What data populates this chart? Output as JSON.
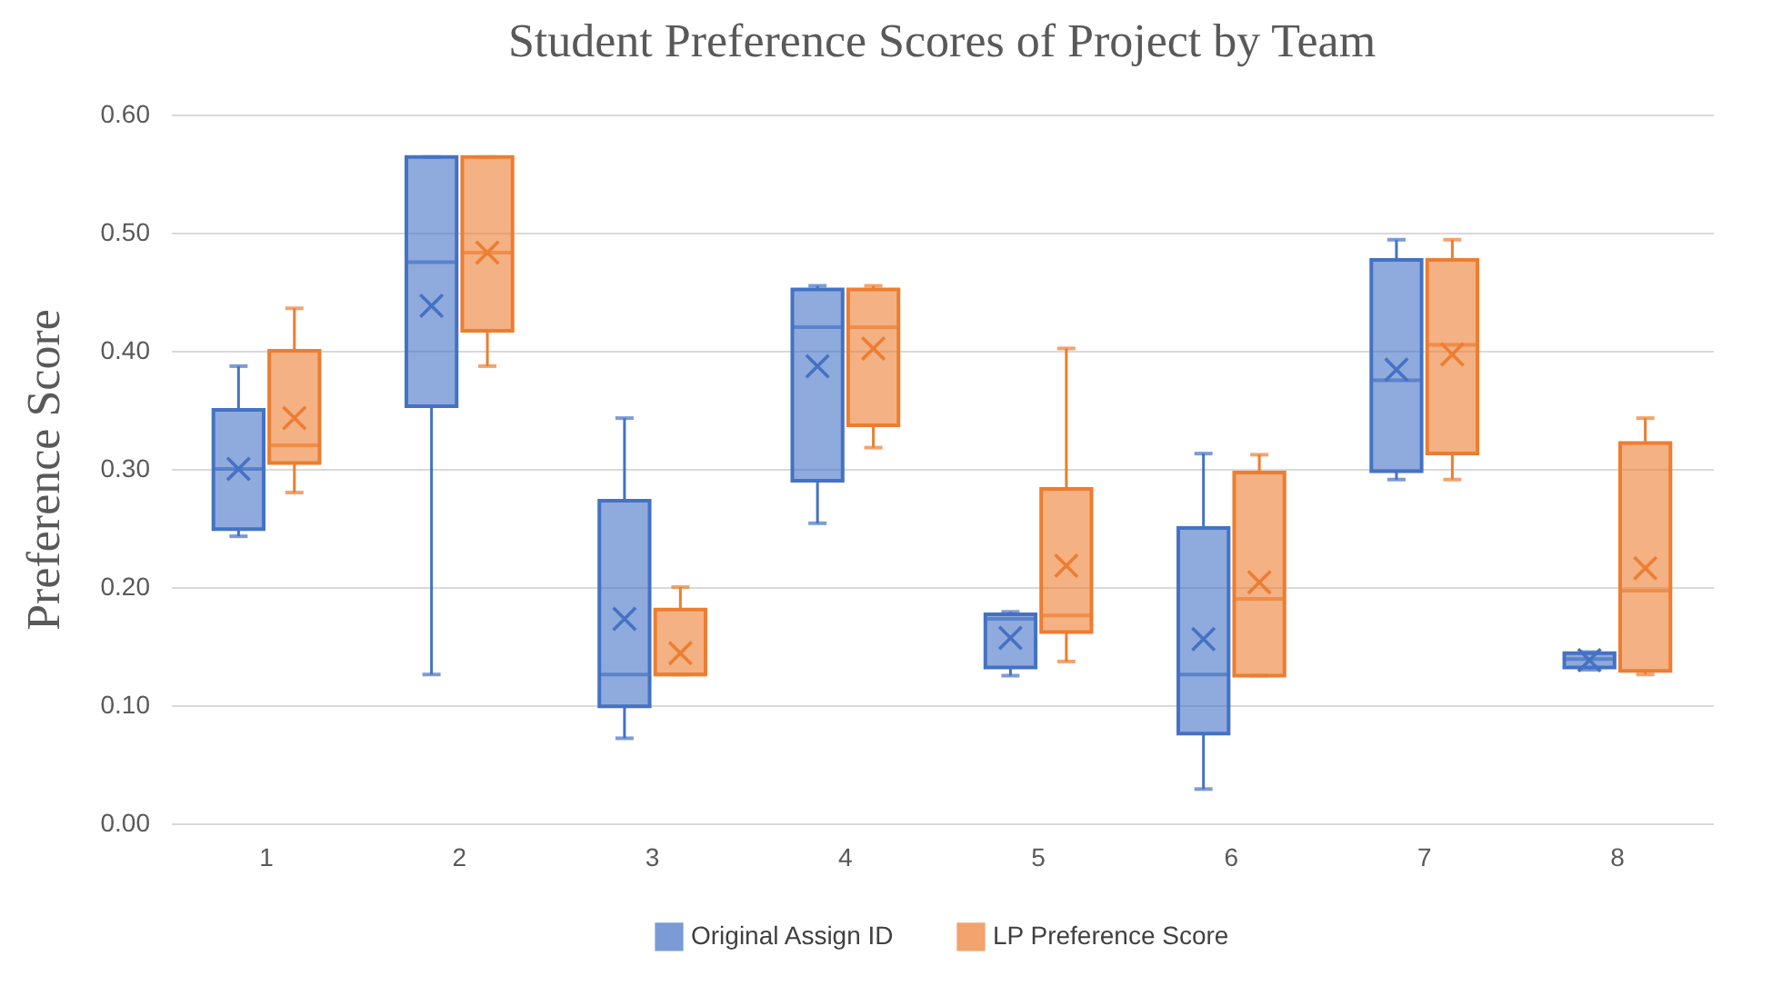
{
  "chart_data": {
    "type": "box",
    "title": "Student Preference Scores of Project by Team",
    "ylabel": "Preference Score",
    "categories": [
      "1",
      "2",
      "3",
      "4",
      "5",
      "6",
      "7",
      "8"
    ],
    "ylim": [
      0,
      0.6
    ],
    "yticks": [
      {
        "value": 0,
        "label": "0.00"
      },
      {
        "value": 0.1,
        "label": "0.10"
      },
      {
        "value": 0.2,
        "label": "0.20"
      },
      {
        "value": 0.3,
        "label": "0.30"
      },
      {
        "value": 0.4,
        "label": "0.40"
      },
      {
        "value": 0.5,
        "label": "0.50"
      },
      {
        "value": 0.6,
        "label": "0.60"
      }
    ],
    "grid": "y",
    "legend": "bottom",
    "series": [
      {
        "name": "Original Assign ID",
        "color": "#4472c4",
        "boxes": [
          {
            "low": 0.243,
            "q1": 0.249,
            "median": 0.3,
            "q3": 0.35,
            "high": 0.387,
            "mean": 0.3
          },
          {
            "low": 0.126,
            "q1": 0.353,
            "median": 0.475,
            "q3": 0.564,
            "high": 0.564,
            "mean": 0.438
          },
          {
            "low": 0.072,
            "q1": 0.099,
            "median": 0.126,
            "q3": 0.273,
            "high": 0.343,
            "mean": 0.173
          },
          {
            "low": 0.254,
            "q1": 0.29,
            "median": 0.42,
            "q3": 0.452,
            "high": 0.455,
            "mean": 0.387
          },
          {
            "low": 0.125,
            "q1": 0.132,
            "median": 0.173,
            "q3": 0.177,
            "high": 0.179,
            "mean": 0.157
          },
          {
            "low": 0.029,
            "q1": 0.076,
            "median": 0.126,
            "q3": 0.25,
            "high": 0.313,
            "mean": 0.156
          },
          {
            "low": 0.291,
            "q1": 0.298,
            "median": 0.375,
            "q3": 0.477,
            "high": 0.494,
            "mean": 0.384
          },
          {
            "low": 0.13,
            "q1": 0.132,
            "median": 0.139,
            "q3": 0.144,
            "high": 0.145,
            "mean": 0.138
          }
        ]
      },
      {
        "name": "LP Preference Score",
        "color": "#ed7d31",
        "boxes": [
          {
            "low": 0.28,
            "q1": 0.305,
            "median": 0.32,
            "q3": 0.4,
            "high": 0.436,
            "mean": 0.343
          },
          {
            "low": 0.387,
            "q1": 0.417,
            "median": 0.483,
            "q3": 0.564,
            "high": 0.564,
            "mean": 0.483
          },
          {
            "low": 0.126,
            "q1": 0.126,
            "median": 0.126,
            "q3": 0.181,
            "high": 0.2,
            "mean": 0.144
          },
          {
            "low": 0.318,
            "q1": 0.337,
            "median": 0.42,
            "q3": 0.452,
            "high": 0.455,
            "mean": 0.402
          },
          {
            "low": 0.137,
            "q1": 0.162,
            "median": 0.176,
            "q3": 0.283,
            "high": 0.402,
            "mean": 0.218
          },
          {
            "low": 0.125,
            "q1": 0.125,
            "median": 0.19,
            "q3": 0.297,
            "high": 0.312,
            "mean": 0.204
          },
          {
            "low": 0.291,
            "q1": 0.313,
            "median": 0.405,
            "q3": 0.477,
            "high": 0.494,
            "mean": 0.397
          },
          {
            "low": 0.126,
            "q1": 0.129,
            "median": 0.197,
            "q3": 0.322,
            "high": 0.343,
            "mean": 0.216
          }
        ]
      }
    ]
  }
}
